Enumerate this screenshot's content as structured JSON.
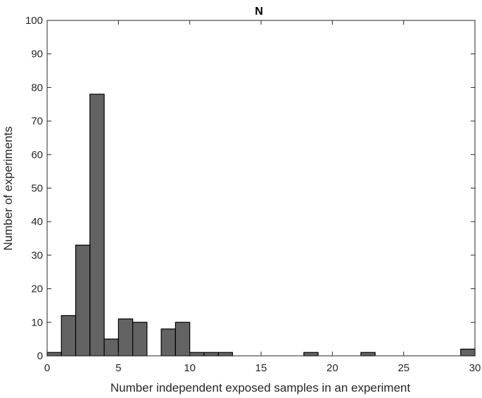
{
  "chart_data": {
    "type": "bar",
    "title": "N",
    "xlabel": "Number independent exposed samples in an experiment",
    "ylabel": "Number of experiments",
    "xlim": [
      0,
      30
    ],
    "ylim": [
      0,
      100
    ],
    "x_ticks": [
      "0",
      "5",
      "10",
      "15",
      "20",
      "25",
      "30"
    ],
    "y_ticks": [
      "0",
      "10",
      "20",
      "30",
      "40",
      "50",
      "60",
      "70",
      "80",
      "90",
      "100"
    ],
    "bin_width": 1,
    "bins": [
      {
        "start": 0,
        "count": 1
      },
      {
        "start": 1,
        "count": 12
      },
      {
        "start": 2,
        "count": 33
      },
      {
        "start": 3,
        "count": 78
      },
      {
        "start": 4,
        "count": 5
      },
      {
        "start": 5,
        "count": 11
      },
      {
        "start": 6,
        "count": 10
      },
      {
        "start": 8,
        "count": 8
      },
      {
        "start": 9,
        "count": 10
      },
      {
        "start": 10,
        "count": 1
      },
      {
        "start": 11,
        "count": 1
      },
      {
        "start": 12,
        "count": 1
      },
      {
        "start": 18,
        "count": 1
      },
      {
        "start": 22,
        "count": 1
      },
      {
        "start": 29,
        "count": 2
      }
    ],
    "bar_color": "#636363",
    "grid": false,
    "legend": "none"
  }
}
